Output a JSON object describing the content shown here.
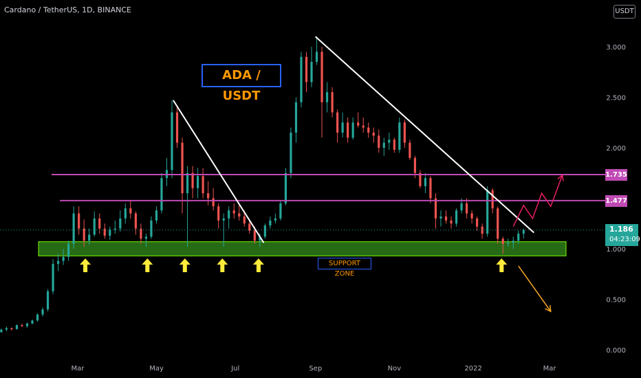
{
  "header": {
    "title": "Cardano / TetherUS, 1D, BINANCE",
    "currency": "USDT"
  },
  "colors": {
    "background": "#000000",
    "up_candle": "#26a69a",
    "down_candle": "#ef5350",
    "resistance_line": "#c04ab4",
    "trendline": "#ffffff",
    "support_zone_fill": "#2e7d1a",
    "support_zone_border": "#7cfc00",
    "arrow": "#ffeb3b",
    "bull_projection": "#e91e63",
    "bear_projection": "#f9a825",
    "current_price_bg": "#26a69a"
  },
  "annotations": {
    "pair_label": "ADA / USDT",
    "support_zone_label": "SUPPORT ZONE"
  },
  "chart_data": {
    "type": "candlestick",
    "title": "Cardano / TetherUS, 1D, BINANCE",
    "y_axis": {
      "ticks": [
        "3.000",
        "2.500",
        "2.000",
        "1.500",
        "1.000",
        "0.500",
        "0.000"
      ],
      "range": [
        0.0,
        3.0
      ],
      "position": "right"
    },
    "x_axis": {
      "ticks": [
        "Mar",
        "May",
        "Jul",
        "Sep",
        "Nov",
        "2022",
        "Mar"
      ]
    },
    "horizontal_levels": [
      {
        "label": "1.735",
        "value": 1.735
      },
      {
        "label": "1.477",
        "value": 1.477
      }
    ],
    "current_price": {
      "value": "1.186",
      "countdown": "04:23:09"
    },
    "support_zone": {
      "low": 0.93,
      "high": 1.07,
      "label": "SUPPORT ZONE"
    },
    "trendlines": [
      {
        "from": [
          "2021-05-15",
          2.47
        ],
        "to": [
          "2021-07-24",
          1.06
        ]
      },
      {
        "from": [
          "2021-09-02",
          3.1
        ],
        "to": [
          "2022-02-18",
          1.16
        ]
      }
    ],
    "support_touch_arrows": [
      "2021-03-08",
      "2021-04-25",
      "2021-05-24",
      "2021-06-22",
      "2021-07-20",
      "2022-01-24"
    ],
    "projections": [
      {
        "direction": "up",
        "points": [
          [
            "2022-02-02",
            1.22
          ],
          [
            "2022-02-10",
            1.43
          ],
          [
            "2022-02-17",
            1.3
          ],
          [
            "2022-02-24",
            1.55
          ],
          [
            "2022-03-03",
            1.42
          ],
          [
            "2022-03-12",
            1.73
          ]
        ]
      },
      {
        "direction": "down",
        "points": [
          [
            "2022-02-06",
            0.83
          ],
          [
            "2022-03-03",
            0.38
          ]
        ]
      }
    ],
    "series": [
      {
        "ohlc": [
          [
            "2021-01-02",
            0.175,
            0.21,
            0.17,
            0.2
          ],
          [
            "2021-01-06",
            0.2,
            0.23,
            0.185,
            0.215
          ],
          [
            "2021-01-10",
            0.215,
            0.22,
            0.19,
            0.205
          ],
          [
            "2021-01-14",
            0.205,
            0.25,
            0.2,
            0.245
          ],
          [
            "2021-01-18",
            0.245,
            0.26,
            0.225,
            0.235
          ],
          [
            "2021-01-22",
            0.235,
            0.27,
            0.22,
            0.26
          ],
          [
            "2021-01-26",
            0.26,
            0.3,
            0.255,
            0.29
          ],
          [
            "2021-01-30",
            0.29,
            0.36,
            0.28,
            0.35
          ],
          [
            "2021-02-03",
            0.35,
            0.42,
            0.33,
            0.4
          ],
          [
            "2021-02-07",
            0.4,
            0.6,
            0.38,
            0.58
          ],
          [
            "2021-02-11",
            0.58,
            0.9,
            0.55,
            0.85
          ],
          [
            "2021-02-15",
            0.85,
            0.95,
            0.78,
            0.88
          ],
          [
            "2021-02-19",
            0.88,
            1.0,
            0.84,
            0.92
          ],
          [
            "2021-02-23",
            0.92,
            1.08,
            0.88,
            1.05
          ],
          [
            "2021-02-27",
            1.05,
            1.42,
            1.0,
            1.35
          ],
          [
            "2021-03-03",
            1.35,
            1.42,
            1.14,
            1.2
          ],
          [
            "2021-03-07",
            1.2,
            1.29,
            1.02,
            1.08
          ],
          [
            "2021-03-11",
            1.08,
            1.2,
            1.04,
            1.14
          ],
          [
            "2021-03-15",
            1.14,
            1.37,
            1.12,
            1.3
          ],
          [
            "2021-03-19",
            1.3,
            1.35,
            1.15,
            1.2
          ],
          [
            "2021-03-23",
            1.2,
            1.25,
            1.1,
            1.13
          ],
          [
            "2021-03-27",
            1.13,
            1.22,
            1.09,
            1.19
          ],
          [
            "2021-03-31",
            1.19,
            1.28,
            1.15,
            1.2
          ],
          [
            "2021-04-04",
            1.2,
            1.38,
            1.17,
            1.3
          ],
          [
            "2021-04-08",
            1.3,
            1.45,
            1.25,
            1.4
          ],
          [
            "2021-04-12",
            1.4,
            1.48,
            1.3,
            1.35
          ],
          [
            "2021-04-16",
            1.35,
            1.37,
            1.14,
            1.2
          ],
          [
            "2021-04-20",
            1.2,
            1.25,
            1.05,
            1.1
          ],
          [
            "2021-04-24",
            1.1,
            1.15,
            1.02,
            1.12
          ],
          [
            "2021-04-28",
            1.12,
            1.32,
            1.1,
            1.28
          ],
          [
            "2021-05-02",
            1.28,
            1.42,
            1.25,
            1.38
          ],
          [
            "2021-05-06",
            1.38,
            1.75,
            1.35,
            1.7
          ],
          [
            "2021-05-10",
            1.7,
            1.9,
            1.62,
            1.78
          ],
          [
            "2021-05-14",
            1.78,
            2.47,
            1.7,
            2.35
          ],
          [
            "2021-05-18",
            2.35,
            2.4,
            2.0,
            2.05
          ],
          [
            "2021-05-22",
            2.05,
            2.1,
            1.35,
            1.55
          ],
          [
            "2021-05-26",
            1.55,
            1.82,
            1.02,
            1.75
          ],
          [
            "2021-05-30",
            1.75,
            1.82,
            1.5,
            1.6
          ],
          [
            "2021-06-03",
            1.6,
            1.8,
            1.5,
            1.72
          ],
          [
            "2021-06-07",
            1.72,
            1.8,
            1.5,
            1.55
          ],
          [
            "2021-06-11",
            1.55,
            1.67,
            1.43,
            1.5
          ],
          [
            "2021-06-15",
            1.5,
            1.6,
            1.38,
            1.42
          ],
          [
            "2021-06-19",
            1.42,
            1.45,
            1.2,
            1.28
          ],
          [
            "2021-06-23",
            1.28,
            1.35,
            1.02,
            1.3
          ],
          [
            "2021-06-27",
            1.3,
            1.42,
            1.2,
            1.38
          ],
          [
            "2021-07-01",
            1.38,
            1.45,
            1.3,
            1.35
          ],
          [
            "2021-07-05",
            1.35,
            1.43,
            1.28,
            1.32
          ],
          [
            "2021-07-09",
            1.32,
            1.38,
            1.22,
            1.25
          ],
          [
            "2021-07-13",
            1.25,
            1.28,
            1.15,
            1.18
          ],
          [
            "2021-07-17",
            1.18,
            1.22,
            1.05,
            1.08
          ],
          [
            "2021-07-21",
            1.08,
            1.15,
            1.02,
            1.12
          ],
          [
            "2021-07-25",
            1.12,
            1.25,
            1.1,
            1.23
          ],
          [
            "2021-07-29",
            1.23,
            1.32,
            1.2,
            1.28
          ],
          [
            "2021-08-02",
            1.28,
            1.35,
            1.25,
            1.3
          ],
          [
            "2021-08-06",
            1.3,
            1.48,
            1.28,
            1.45
          ],
          [
            "2021-08-10",
            1.45,
            1.8,
            1.43,
            1.75
          ],
          [
            "2021-08-14",
            1.75,
            2.2,
            1.7,
            2.15
          ],
          [
            "2021-08-18",
            2.15,
            2.5,
            2.05,
            2.45
          ],
          [
            "2021-08-22",
            2.45,
            2.95,
            2.4,
            2.9
          ],
          [
            "2021-08-26",
            2.9,
            2.95,
            2.55,
            2.65
          ],
          [
            "2021-08-30",
            2.65,
            3.0,
            2.6,
            2.85
          ],
          [
            "2021-09-03",
            2.85,
            3.1,
            2.82,
            2.95
          ],
          [
            "2021-09-07",
            2.95,
            3.0,
            2.1,
            2.45
          ],
          [
            "2021-09-11",
            2.45,
            2.65,
            2.35,
            2.55
          ],
          [
            "2021-09-15",
            2.55,
            2.6,
            2.3,
            2.35
          ],
          [
            "2021-09-19",
            2.35,
            2.38,
            2.05,
            2.15
          ],
          [
            "2021-09-23",
            2.15,
            2.35,
            2.1,
            2.25
          ],
          [
            "2021-09-27",
            2.25,
            2.3,
            2.05,
            2.1
          ],
          [
            "2021-10-01",
            2.1,
            2.3,
            2.08,
            2.25
          ],
          [
            "2021-10-05",
            2.25,
            2.35,
            2.2,
            2.22
          ],
          [
            "2021-10-09",
            2.22,
            2.3,
            2.15,
            2.2
          ],
          [
            "2021-10-13",
            2.2,
            2.25,
            2.1,
            2.15
          ],
          [
            "2021-10-17",
            2.15,
            2.2,
            2.05,
            2.12
          ],
          [
            "2021-10-21",
            2.12,
            2.18,
            1.95,
            2.0
          ],
          [
            "2021-10-25",
            2.0,
            2.1,
            1.92,
            2.05
          ],
          [
            "2021-10-29",
            2.05,
            2.15,
            1.98,
            2.08
          ],
          [
            "2021-11-02",
            2.08,
            2.1,
            1.95,
            1.98
          ],
          [
            "2021-11-06",
            1.98,
            2.3,
            1.95,
            2.25
          ],
          [
            "2021-11-10",
            2.25,
            2.28,
            2.0,
            2.05
          ],
          [
            "2021-11-14",
            2.05,
            2.08,
            1.88,
            1.9
          ],
          [
            "2021-11-18",
            1.9,
            1.92,
            1.7,
            1.75
          ],
          [
            "2021-11-22",
            1.75,
            1.78,
            1.6,
            1.62
          ],
          [
            "2021-11-26",
            1.62,
            1.75,
            1.55,
            1.7
          ],
          [
            "2021-11-30",
            1.7,
            1.72,
            1.45,
            1.5
          ],
          [
            "2021-12-04",
            1.5,
            1.55,
            1.2,
            1.3
          ],
          [
            "2021-12-08",
            1.3,
            1.38,
            1.22,
            1.32
          ],
          [
            "2021-12-12",
            1.32,
            1.38,
            1.25,
            1.28
          ],
          [
            "2021-12-16",
            1.28,
            1.32,
            1.2,
            1.25
          ],
          [
            "2021-12-20",
            1.25,
            1.4,
            1.22,
            1.38
          ],
          [
            "2021-12-24",
            1.38,
            1.5,
            1.35,
            1.45
          ],
          [
            "2021-12-28",
            1.45,
            1.5,
            1.3,
            1.35
          ],
          [
            "2022-01-01",
            1.35,
            1.38,
            1.25,
            1.3
          ],
          [
            "2022-01-05",
            1.3,
            1.32,
            1.18,
            1.22
          ],
          [
            "2022-01-09",
            1.22,
            1.25,
            1.1,
            1.15
          ],
          [
            "2022-01-13",
            1.15,
            1.62,
            1.12,
            1.58
          ],
          [
            "2022-01-17",
            1.58,
            1.6,
            1.35,
            1.4
          ],
          [
            "2022-01-21",
            1.4,
            1.42,
            1.05,
            1.1
          ],
          [
            "2022-01-25",
            1.1,
            1.12,
            0.95,
            1.05
          ],
          [
            "2022-01-29",
            1.05,
            1.1,
            1.02,
            1.06
          ],
          [
            "2022-02-02",
            1.06,
            1.12,
            1.0,
            1.08
          ],
          [
            "2022-02-06",
            1.08,
            1.18,
            1.05,
            1.15
          ],
          [
            "2022-02-10",
            1.15,
            1.2,
            1.1,
            1.186
          ]
        ]
      }
    ]
  }
}
